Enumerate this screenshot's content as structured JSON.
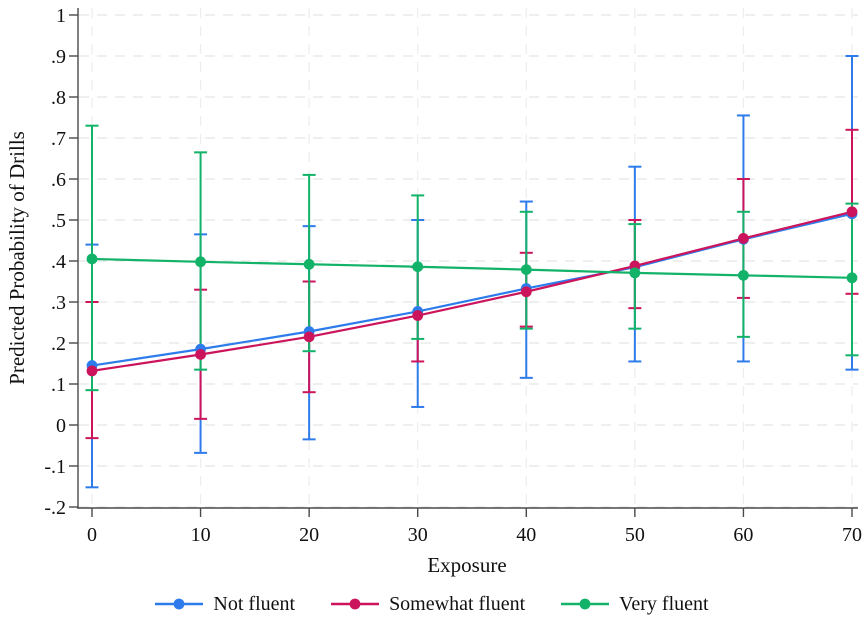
{
  "figure": {
    "background": "#FFFFFF",
    "axis_color": "#4A4A4A",
    "grid_color_horizontal": "#E5E5E5",
    "grid_color_vertical": "#EDEDED",
    "text_color": "#111111"
  },
  "chart_data": {
    "type": "line",
    "title": "",
    "xlabel": "Exposure",
    "ylabel": "Predicted Probability of Drills",
    "grid": true,
    "legend_position": "bottom",
    "marker": "circle",
    "error_bars": true,
    "ylim": [
      -0.2,
      1.0
    ],
    "xlim": [
      0,
      70
    ],
    "x": [
      0,
      10,
      20,
      30,
      40,
      50,
      60,
      70
    ],
    "xtick_labels": [
      "0",
      "10",
      "20",
      "30",
      "40",
      "50",
      "60",
      "70"
    ],
    "ytick_values": [
      1,
      0.9,
      0.8,
      0.7,
      0.6,
      0.5,
      0.4,
      0.3,
      0.2,
      0.1,
      0,
      -0.1,
      -0.2
    ],
    "ytick_labels": [
      "1",
      ".9",
      ".8",
      ".7",
      ".6",
      ".5",
      ".4",
      ".3",
      ".2",
      ".1",
      "0",
      "-.1",
      "-.2"
    ],
    "series": [
      {
        "name": "Not fluent",
        "color": "#2E7CEC",
        "y": [
          0.145,
          0.185,
          0.228,
          0.277,
          0.333,
          0.385,
          0.453,
          0.515
        ],
        "ci_low": [
          -0.152,
          -0.068,
          -0.035,
          0.044,
          0.115,
          0.155,
          0.155,
          0.135
        ],
        "ci_high": [
          0.44,
          0.465,
          0.485,
          0.5,
          0.545,
          0.63,
          0.755,
          0.9
        ]
      },
      {
        "name": "Somewhat fluent",
        "color": "#CC145C",
        "y": [
          0.132,
          0.172,
          0.215,
          0.267,
          0.325,
          0.388,
          0.455,
          0.52
        ],
        "ci_low": [
          -0.032,
          0.015,
          0.08,
          0.155,
          0.24,
          0.285,
          0.31,
          0.32
        ],
        "ci_high": [
          0.3,
          0.33,
          0.35,
          0.385,
          0.42,
          0.5,
          0.6,
          0.72
        ]
      },
      {
        "name": "Very fluent",
        "color": "#12B369",
        "y": [
          0.405,
          0.398,
          0.392,
          0.386,
          0.379,
          0.371,
          0.365,
          0.359
        ],
        "ci_low": [
          0.085,
          0.135,
          0.18,
          0.21,
          0.235,
          0.235,
          0.215,
          0.17
        ],
        "ci_high": [
          0.73,
          0.665,
          0.61,
          0.56,
          0.52,
          0.49,
          0.52,
          0.54
        ]
      }
    ]
  }
}
